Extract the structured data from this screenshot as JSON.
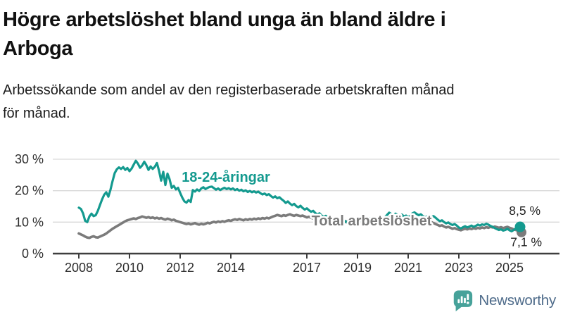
{
  "header": {
    "title_lines": [
      "Högre arbetslöshet bland unga än bland äldre i",
      "Arboga"
    ],
    "subtitle_lines": [
      "Arbetssökande som andel av den registerbaserade arbetskraften månad",
      "för månad."
    ]
  },
  "branding": {
    "logo_text": "Newsworthy",
    "logo_icon": "bar-chart-speech-bubble-icon",
    "logo_icon_color": "#47a29a",
    "logo_text_color": "#4e6b8a"
  },
  "chart_data": {
    "type": "line",
    "title": "Högre arbetslöshet bland unga än bland äldre i Arboga",
    "subtitle": "Arbetssökande som andel av den registerbaserade arbetskraften månad för månad.",
    "x_unit": "year-month",
    "x_start_year": 2008,
    "x_step_months": 1,
    "x_tick_years": [
      2008,
      2010,
      2012,
      2014,
      2017,
      2019,
      2021,
      2023,
      2025
    ],
    "x_tick_labels": [
      "2008",
      "2010",
      "2012",
      "2014",
      "2017",
      "2019",
      "2021",
      "2023",
      "2025"
    ],
    "y_ticks": [
      0,
      10,
      20,
      30
    ],
    "y_tick_labels": [
      "0 %",
      "10 %",
      "20 %",
      "30 %"
    ],
    "ylim": [
      0,
      31
    ],
    "grid": "horizontal",
    "legend_position": "inline-labels",
    "series": [
      {
        "name": "18-24-åringar",
        "color": "#149a8f",
        "end_label": "8,5 %",
        "end_value": 8.5,
        "values": [
          14.6,
          14.2,
          12.8,
          10.4,
          10.0,
          11.8,
          12.7,
          11.9,
          12.2,
          13.6,
          15.4,
          17.2,
          18.7,
          19.5,
          18.1,
          20.3,
          23.1,
          25.6,
          26.8,
          27.4,
          26.9,
          27.5,
          26.6,
          27.2,
          26.2,
          27.0,
          28.3,
          29.5,
          28.6,
          27.3,
          28.0,
          29.2,
          28.1,
          26.6,
          27.7,
          26.9,
          27.6,
          28.8,
          26.3,
          23.2,
          26.0,
          21.8,
          25.4,
          23.6,
          20.9,
          21.5,
          20.4,
          20.9,
          19.3,
          17.8,
          16.6,
          16.2,
          17.0,
          16.4,
          20.2,
          19.7,
          20.4,
          19.9,
          20.7,
          21.1,
          20.5,
          20.9,
          21.2,
          21.3,
          20.8,
          20.3,
          20.7,
          20.2,
          20.6,
          20.9,
          20.5,
          20.8,
          20.4,
          20.7,
          20.2,
          20.5,
          20.0,
          20.3,
          19.8,
          20.1,
          19.6,
          19.9,
          19.5,
          19.8,
          19.4,
          19.7,
          19.2,
          18.8,
          19.1,
          18.6,
          18.9,
          18.3,
          17.8,
          18.2,
          17.6,
          17.9,
          17.3,
          16.8,
          16.1,
          16.6,
          15.9,
          15.4,
          15.8,
          15.1,
          14.7,
          15.2,
          14.5,
          14.0,
          14.4,
          13.8,
          13.3,
          13.6,
          12.9,
          12.4,
          12.8,
          12.1,
          11.7,
          12.0,
          11.4,
          11.1,
          11.5,
          10.9,
          10.5,
          10.8,
          10.3,
          10.0,
          10.4,
          9.9,
          10.2,
          10.6,
          10.1,
          10.5,
          10.8,
          10.4,
          10.7,
          11.0,
          10.5,
          10.9,
          11.2,
          10.8,
          11.1,
          10.7,
          11.0,
          10.6,
          11.0,
          11.5,
          12.3,
          13.0,
          12.6,
          12.2,
          12.7,
          12.3,
          11.9,
          12.4,
          11.8,
          12.1,
          11.6,
          12.0,
          12.8,
          13.1,
          12.6,
          12.2,
          12.5,
          11.9,
          11.5,
          11.8,
          11.3,
          11.6,
          11.9,
          11.4,
          10.8,
          10.3,
          10.6,
          10.0,
          9.6,
          9.9,
          9.4,
          9.1,
          9.4,
          8.9,
          8.3,
          8.0,
          8.4,
          8.7,
          8.3,
          8.6,
          8.9,
          8.5,
          8.8,
          9.2,
          8.9,
          9.3,
          9.1,
          9.5,
          9.2,
          8.8,
          8.5,
          8.1,
          7.8,
          7.5,
          7.7,
          7.3,
          7.5,
          7.9,
          7.4,
          7.1,
          7.5,
          8.0,
          8.3,
          8.5
        ]
      },
      {
        "name": "Total arbetslöshet",
        "color": "#7b7b7b",
        "end_label": "7,1 %",
        "end_value": 7.1,
        "values": [
          6.4,
          6.1,
          5.8,
          5.4,
          5.1,
          5.0,
          5.3,
          5.5,
          5.2,
          5.1,
          5.4,
          5.7,
          6.0,
          6.4,
          6.9,
          7.4,
          7.9,
          8.3,
          8.7,
          9.1,
          9.5,
          9.9,
          10.3,
          10.6,
          10.8,
          11.0,
          11.2,
          11.0,
          11.3,
          11.5,
          11.8,
          11.6,
          11.4,
          11.6,
          11.3,
          11.5,
          11.2,
          11.4,
          11.1,
          11.3,
          11.0,
          10.8,
          11.1,
          10.9,
          10.6,
          10.8,
          10.4,
          10.2,
          10.0,
          9.8,
          9.6,
          9.4,
          9.6,
          9.3,
          9.5,
          9.7,
          9.4,
          9.2,
          9.5,
          9.3,
          9.5,
          9.8,
          9.6,
          9.9,
          10.1,
          9.9,
          10.2,
          10.0,
          10.3,
          10.1,
          10.4,
          10.6,
          10.4,
          10.7,
          10.9,
          10.7,
          11.0,
          10.8,
          10.6,
          10.9,
          10.7,
          11.0,
          10.8,
          11.1,
          10.9,
          11.2,
          11.0,
          11.3,
          11.1,
          11.4,
          11.2,
          11.5,
          11.8,
          12.0,
          12.3,
          12.1,
          11.9,
          12.2,
          12.0,
          12.3,
          12.5,
          12.2,
          12.0,
          12.3,
          12.1,
          11.9,
          12.1,
          11.8,
          11.5,
          11.7,
          11.4,
          11.2,
          11.4,
          11.1,
          10.9,
          11.1,
          10.8,
          11.0,
          10.7,
          10.9,
          10.6,
          10.8,
          10.5,
          10.3,
          10.5,
          10.2,
          10.0,
          10.2,
          9.9,
          10.1,
          9.8,
          10.0,
          10.2,
          10.0,
          10.2,
          10.4,
          10.1,
          10.3,
          10.5,
          10.2,
          10.4,
          10.1,
          10.3,
          10.5,
          10.3,
          10.6,
          11.1,
          11.5,
          11.3,
          11.6,
          11.4,
          11.1,
          11.3,
          11.0,
          10.8,
          11.0,
          10.7,
          11.0,
          11.2,
          10.9,
          10.6,
          10.8,
          10.5,
          10.2,
          10.4,
          10.1,
          9.8,
          10.0,
          9.7,
          9.4,
          9.1,
          8.8,
          9.0,
          8.6,
          8.3,
          8.5,
          8.2,
          7.9,
          8.1,
          7.8,
          7.6,
          7.4,
          7.7,
          7.9,
          7.7,
          8.0,
          7.8,
          8.1,
          7.9,
          8.2,
          8.0,
          8.3,
          8.1,
          8.4,
          8.2,
          8.5,
          8.3,
          8.6,
          8.4,
          8.2,
          8.4,
          8.1,
          8.3,
          8.5,
          8.2,
          8.0,
          7.7,
          7.5,
          7.3,
          7.1
        ]
      }
    ],
    "colors": {
      "grid": "#d9d9d9",
      "axis": "#3e3e3e",
      "axis_text": "#2e2e2e"
    }
  }
}
